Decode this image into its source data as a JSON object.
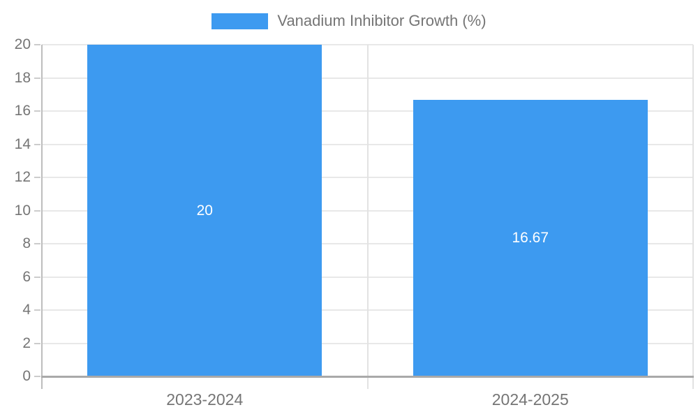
{
  "chart_data": {
    "type": "bar",
    "title": "Vanadium Inhibitor Growth (%)",
    "categories": [
      "2023-2024",
      "2024-2025"
    ],
    "series": [
      {
        "name": "Vanadium Inhibitor Growth (%)",
        "values": [
          20,
          16.67
        ]
      }
    ],
    "value_labels": [
      "20",
      "16.67"
    ],
    "xlabel": "",
    "ylabel": "",
    "ylim": [
      0,
      20
    ],
    "yticks": [
      0,
      2,
      4,
      6,
      8,
      10,
      12,
      14,
      16,
      18,
      20
    ],
    "grid": true,
    "legend_position": "top-center"
  },
  "legend": {
    "label": "Vanadium Inhibitor Growth (%)"
  },
  "colors": {
    "bar": "#3D9AF0",
    "axis_text": "#757575",
    "gridline": "#e8e8e8",
    "divider": "#e2e2e2",
    "x_axis_line": "#a9a9a9",
    "y_axis_line": "#bdbdbd",
    "tick": "#cccccc",
    "bar_label_text": "#ffffff",
    "background": "#ffffff"
  }
}
